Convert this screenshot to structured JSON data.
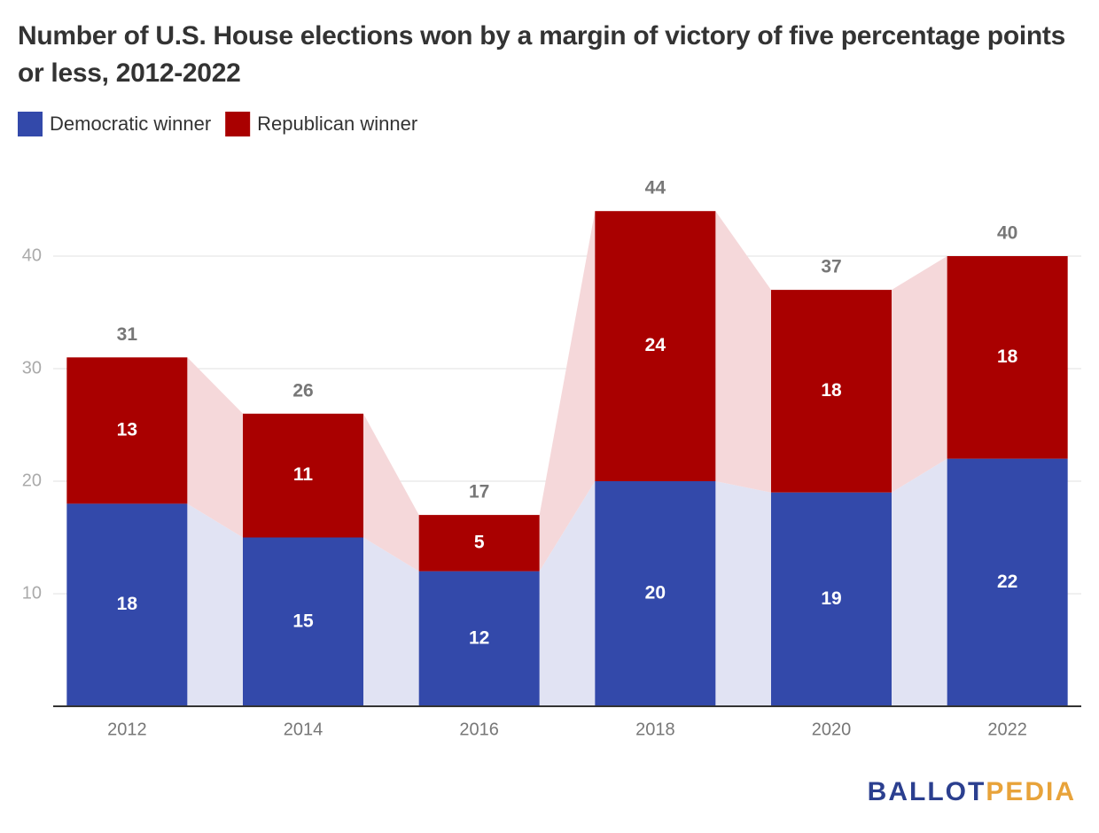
{
  "chart_data": {
    "type": "stacked_bar",
    "title": "Number of U.S. House elections won by a margin of victory of five percentage points or less, 2012-2022",
    "categories": [
      "2012",
      "2014",
      "2016",
      "2018",
      "2020",
      "2022"
    ],
    "series": [
      {
        "name": "Democratic winner",
        "color": "#3349aa",
        "connector_color": "#e1e3f3",
        "values": [
          18,
          15,
          12,
          20,
          19,
          22
        ]
      },
      {
        "name": "Republican winner",
        "color": "#a90000",
        "connector_color": "#f5d8da",
        "values": [
          13,
          11,
          5,
          24,
          18,
          18
        ]
      }
    ],
    "total_labels": [
      31,
      26,
      17,
      44,
      37,
      40
    ],
    "ylim": [
      0,
      45
    ],
    "yticks": [
      10,
      20,
      30,
      40
    ],
    "grid": true,
    "logo": [
      "BALLOT",
      "PEDIA"
    ]
  }
}
